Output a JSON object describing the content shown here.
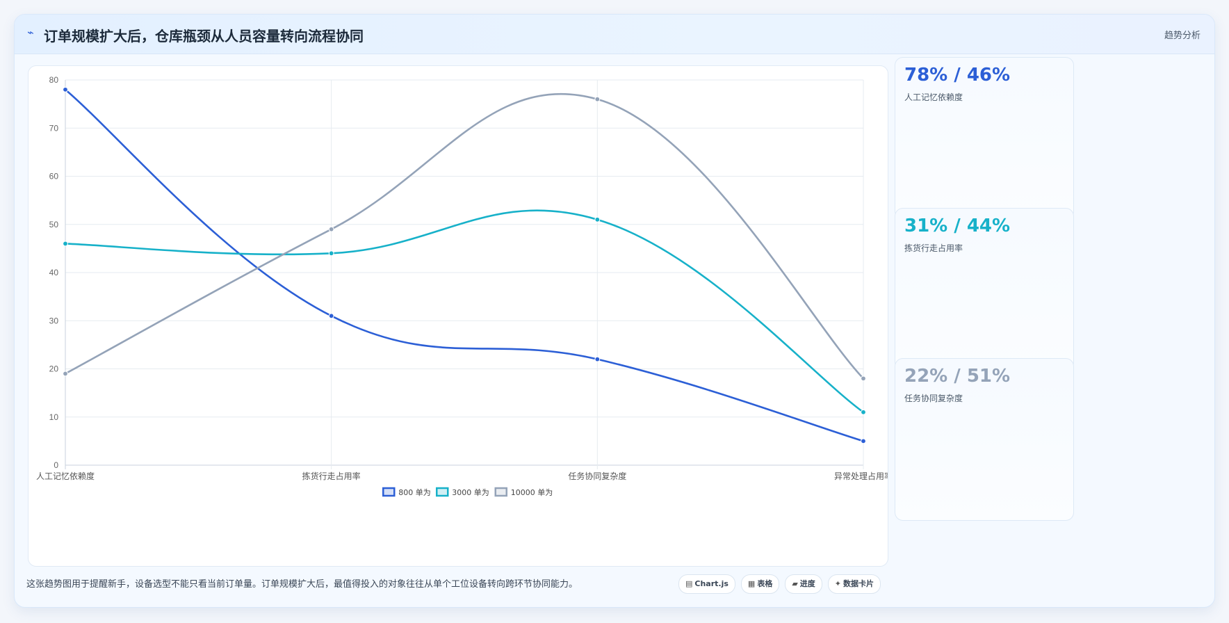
{
  "header": {
    "icon": "trend-line-icon",
    "title": "订单规模扩大后，仓库瓶颈从人员容量转向流程协同",
    "tag": "趋势分析"
  },
  "chart_data": {
    "type": "line",
    "categories": [
      "人工记忆依赖度",
      "拣货行走占用率",
      "任务协同复杂度",
      "异常处理占用率"
    ],
    "series": [
      {
        "name": "800 单为",
        "color": "#2c5fd6",
        "values": [
          78,
          31,
          22,
          5
        ]
      },
      {
        "name": "3000 单为",
        "color": "#17b1c9",
        "values": [
          46,
          44,
          51,
          11
        ]
      },
      {
        "name": "10000 单为",
        "color": "#94a3b8",
        "values": [
          19,
          49,
          76,
          18
        ]
      }
    ],
    "ylim": [
      0,
      80
    ],
    "yticks": [
      0,
      10,
      20,
      30,
      40,
      50,
      60,
      70,
      80
    ],
    "grid": true,
    "legend": "bottom"
  },
  "kpis": [
    {
      "value": "78% / 46%",
      "label": "人工记忆依赖度",
      "color": "#2c5fd6"
    },
    {
      "value": "31% / 44%",
      "label": "拣货行走占用率",
      "color": "#17b1c9"
    },
    {
      "value": "22% / 51%",
      "label": "任务协同复杂度",
      "color": "#94a3b8"
    }
  ],
  "footer": {
    "text": "这张趋势图用于提醒新手，设备选型不能只看当前订单量。订单规模扩大后，最值得投入的对象往往从单个工位设备转向跨环节协同能力。",
    "chips": [
      {
        "icon": "chart-icon",
        "glyph": "▤",
        "label": "Chart.js"
      },
      {
        "icon": "table-icon",
        "glyph": "▦",
        "label": "表格"
      },
      {
        "icon": "progress-icon",
        "glyph": "▰",
        "label": "进度"
      },
      {
        "icon": "card-icon",
        "glyph": "✦",
        "label": "数据卡片"
      }
    ]
  }
}
